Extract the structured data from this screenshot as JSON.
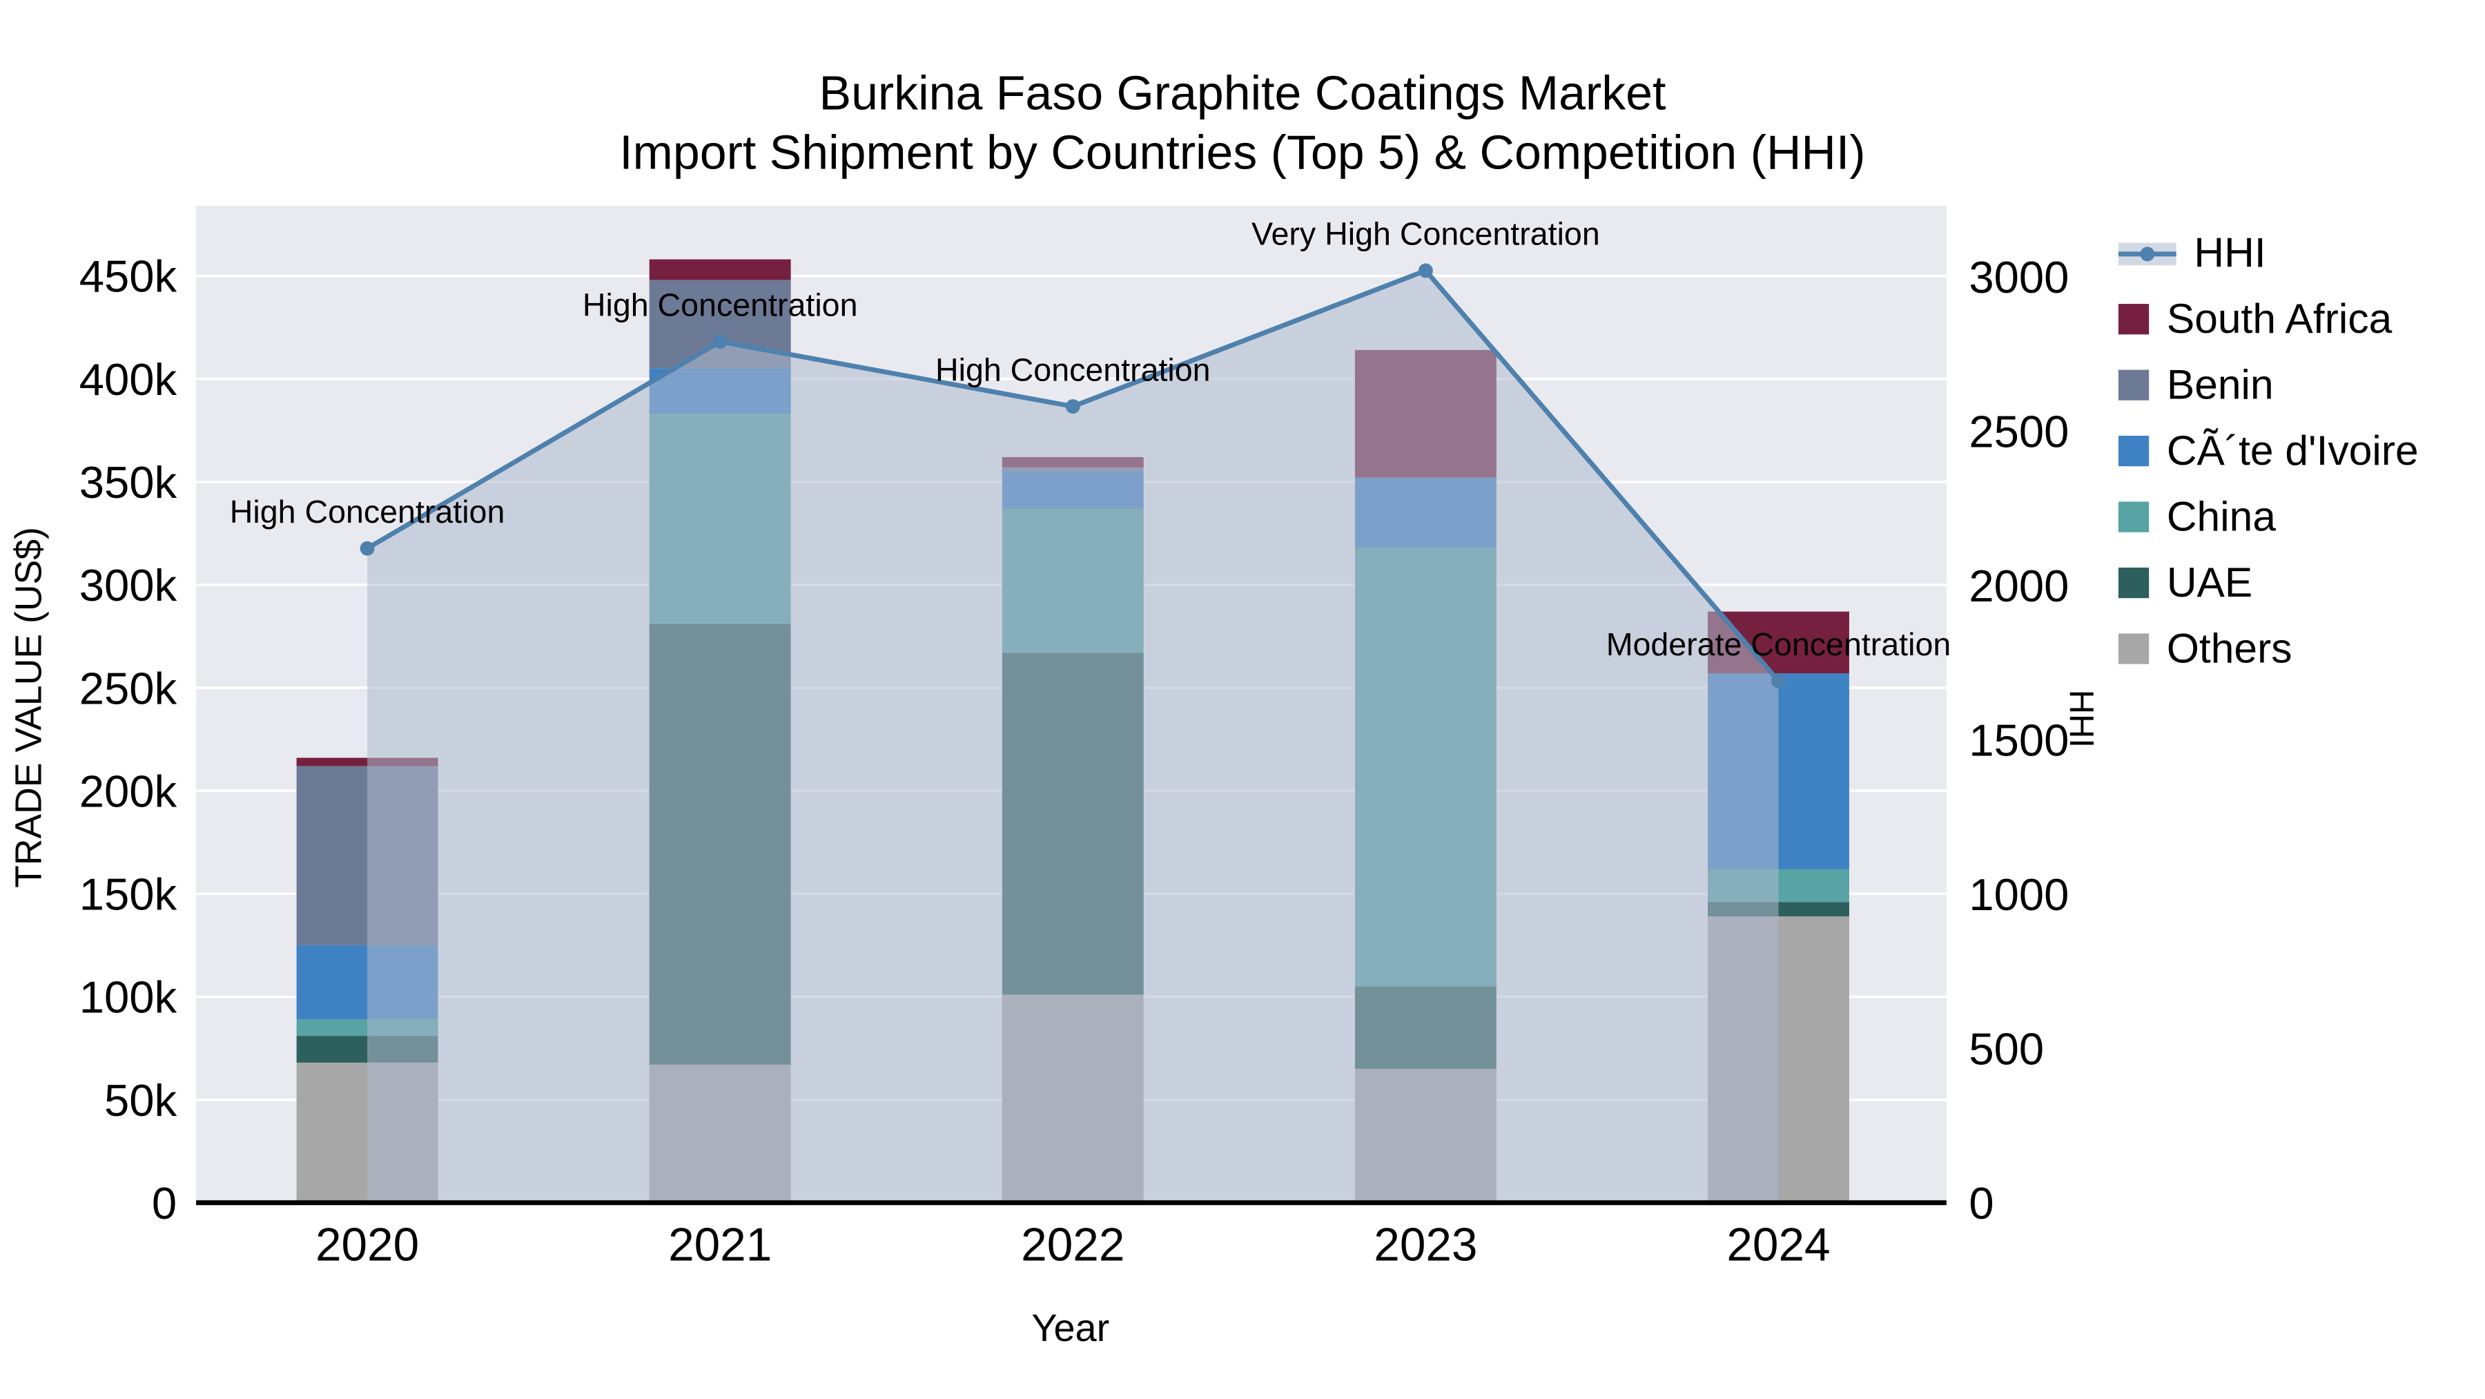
{
  "title": {
    "line1": "Burkina Faso Graphite Coatings Market",
    "line2": "Import Shipment by Countries (Top 5) & Competition (HHI)"
  },
  "axes": {
    "y_left": {
      "title": "TRADE VALUE (US$)",
      "tick_values": [
        0,
        50000,
        100000,
        150000,
        200000,
        250000,
        300000,
        350000,
        400000,
        450000
      ],
      "tick_labels": [
        "0",
        "50k",
        "100k",
        "150k",
        "200k",
        "250k",
        "300k",
        "350k",
        "400k",
        "450k"
      ],
      "range": [
        0,
        484000
      ]
    },
    "y_right": {
      "title": "HHI",
      "tick_values": [
        0,
        500,
        1000,
        1500,
        2000,
        2500,
        3000
      ],
      "tick_labels": [
        "0",
        "500",
        "1000",
        "1500",
        "2000",
        "2500",
        "3000"
      ],
      "range": [
        0,
        3230
      ]
    },
    "x": {
      "title": "Year"
    }
  },
  "colors": {
    "plot_bg": "#e9eaf0",
    "grid": "#ffffff",
    "axis_line": "#000000",
    "text": "#000000"
  },
  "chart_data": {
    "type": "bar-line-combo",
    "subtype": "stacked bars (trade value, left axis) + HHI line with area fill (right axis)",
    "categories": [
      "2020",
      "2021",
      "2022",
      "2023",
      "2024"
    ],
    "bar_series": [
      {
        "name": "South Africa",
        "color": "#76203f",
        "values": [
          4000,
          10000,
          5000,
          62000,
          30000
        ]
      },
      {
        "name": "Benin",
        "color": "#6d7a96",
        "values": [
          87000,
          43000,
          2000,
          0,
          0
        ]
      },
      {
        "name": "CÃ´te d'Ivoire",
        "color": "#3e82c4",
        "values": [
          36000,
          22000,
          18000,
          34000,
          95000
        ]
      },
      {
        "name": "China",
        "color": "#58a3a4",
        "values": [
          8000,
          102000,
          70000,
          213000,
          16000
        ]
      },
      {
        "name": "UAE",
        "color": "#2d5f5c",
        "values": [
          13000,
          214000,
          166000,
          40000,
          7000
        ]
      },
      {
        "name": "Others",
        "color": "#a7a7a7",
        "values": [
          68000,
          67000,
          101000,
          65000,
          139000
        ]
      }
    ],
    "stack_order_note": "bars stack bottom-to-top as Others, UAE, China, CÃ´te d'Ivoire, Benin, South Africa",
    "line_series": {
      "name": "HHI",
      "color": "#4e81ad",
      "fill": "rgba(175,186,205,0.55)",
      "values": [
        2120,
        2790,
        2580,
        3020,
        1690
      ]
    },
    "annotations": [
      "High Concentration",
      "High Concentration",
      "High Concentration",
      "Very High Concentration",
      "Moderate Concentration"
    ],
    "legend_position": "right",
    "grid": "horizontal white gridlines on light panel"
  }
}
